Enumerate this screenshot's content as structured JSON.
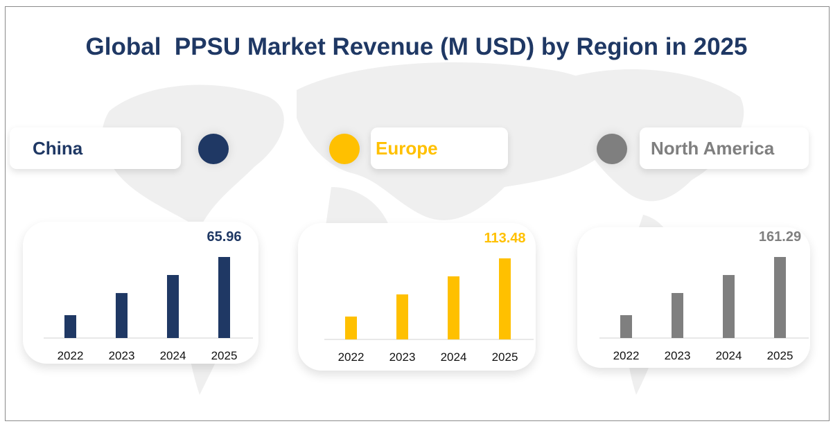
{
  "title": "Global  PPSU Market Revenue (M USD) by Region in 2025",
  "chart_data": [
    {
      "type": "bar",
      "region": "China",
      "color": "#1f3864",
      "categories": [
        "2022",
        "2023",
        "2024",
        "2025"
      ],
      "values": [
        18.6,
        36.6,
        51.3,
        65.96
      ],
      "data_label": "65.96"
    },
    {
      "type": "bar",
      "region": "Europe",
      "color": "#ffc000",
      "categories": [
        "2022",
        "2023",
        "2024",
        "2025"
      ],
      "values": [
        32.0,
        63.0,
        88.3,
        113.48
      ],
      "data_label": "113.48"
    },
    {
      "type": "bar",
      "region": "North America",
      "color": "#7f7f7f",
      "categories": [
        "2022",
        "2023",
        "2024",
        "2025"
      ],
      "values": [
        45.5,
        89.6,
        125.4,
        161.29
      ],
      "data_label": "161.29"
    }
  ]
}
